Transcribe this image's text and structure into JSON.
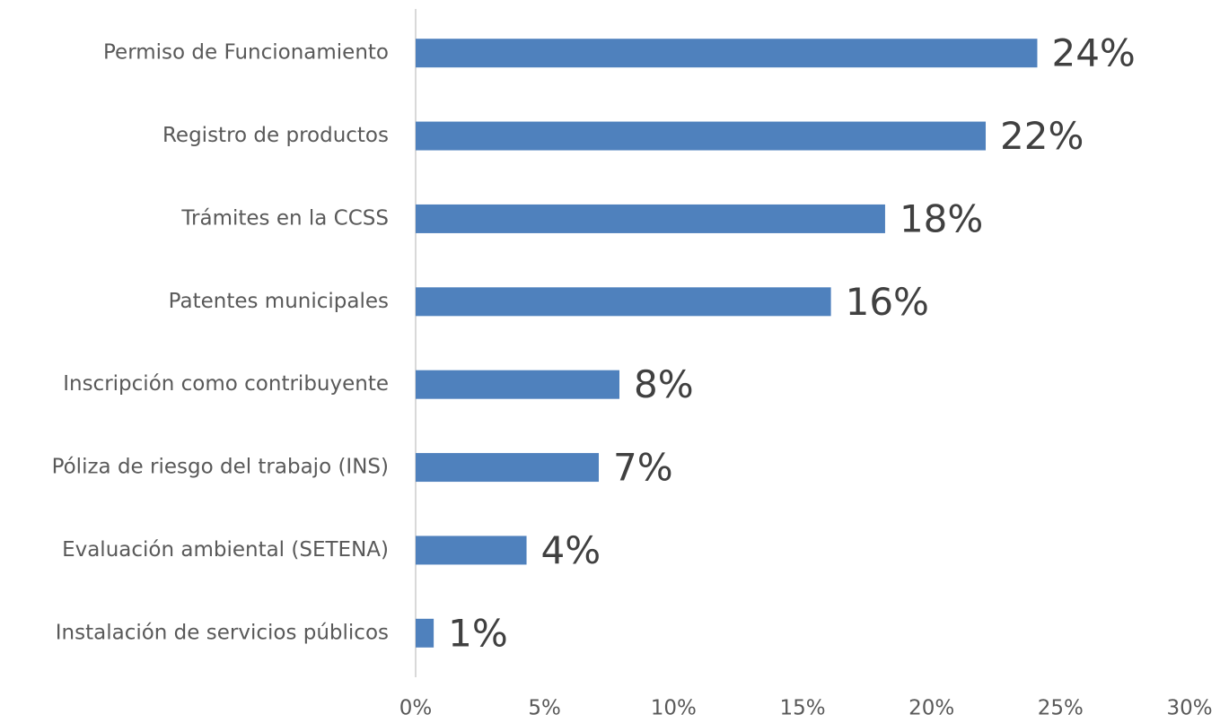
{
  "chart_data": {
    "type": "bar",
    "orientation": "horizontal",
    "categories": [
      "Permiso de Funcionamiento",
      "Registro de productos",
      "Trámites en la CCSS",
      "Patentes municipales",
      "Inscripción como contribuyente",
      "Póliza de riesgo del trabajo (INS)",
      "Evaluación ambiental (SETENA)",
      "Instalación de servicios públicos"
    ],
    "values": [
      24.1,
      22.1,
      18.2,
      16.1,
      7.9,
      7.1,
      4.3,
      0.7
    ],
    "value_labels": [
      "24%",
      "22%",
      "18%",
      "16%",
      "8%",
      "7%",
      "4%",
      "1%"
    ],
    "color": "#4f81bd",
    "xlim": [
      0,
      30
    ],
    "xticks": [
      {
        "value": 0,
        "label": "0%"
      },
      {
        "value": 5,
        "label": "5%"
      },
      {
        "value": 10,
        "label": "10%"
      },
      {
        "value": 15,
        "label": "15%"
      },
      {
        "value": 20,
        "label": "20%"
      },
      {
        "value": 25,
        "label": "25%"
      },
      {
        "value": 30,
        "label": "30%"
      }
    ],
    "grid": false
  }
}
